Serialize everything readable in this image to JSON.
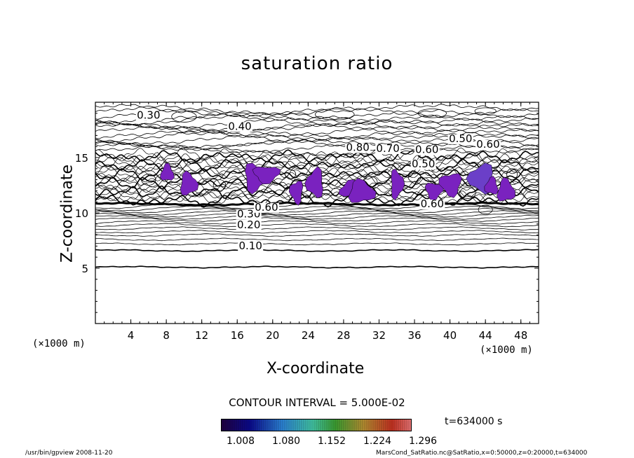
{
  "chart_data": {
    "type": "contour",
    "title": "saturation ratio",
    "xlabel": "X-coordinate",
    "ylabel": "Z-coordinate",
    "x_unit": "(×1000 m)",
    "y_unit": "(×1000 m)",
    "xlim": [
      0,
      50
    ],
    "ylim": [
      0,
      20
    ],
    "xticks": [
      4,
      8,
      12,
      16,
      20,
      24,
      28,
      32,
      36,
      40,
      44,
      48
    ],
    "yticks": [
      5,
      10,
      15
    ],
    "contour_interval_label": "CONTOUR INTERVAL = 5.000E-02",
    "time_label": "t=634000 s",
    "colorbar_ticks": [
      "1.008",
      "1.080",
      "1.152",
      "1.224",
      "1.296"
    ],
    "contour_labels": [
      {
        "text": "0.30",
        "x": 6.0,
        "z": 18.5
      },
      {
        "text": "0.40",
        "x": 16.3,
        "z": 17.5
      },
      {
        "text": "0.50",
        "x": 41.2,
        "z": 16.4
      },
      {
        "text": "0.60",
        "x": 44.3,
        "z": 15.9
      },
      {
        "text": "0.80",
        "x": 29.6,
        "z": 15.6
      },
      {
        "text": "0.70",
        "x": 33.0,
        "z": 15.5
      },
      {
        "text": "0.60",
        "x": 37.4,
        "z": 15.4
      },
      {
        "text": "0.50",
        "x": 37.0,
        "z": 14.1
      },
      {
        "text": "0.30",
        "x": 17.3,
        "z": 9.6
      },
      {
        "text": "0.20",
        "x": 17.3,
        "z": 8.6
      },
      {
        "text": "0.10",
        "x": 17.5,
        "z": 6.7
      },
      {
        "text": "0.60",
        "x": 38.0,
        "z": 10.5
      },
      {
        "text": "0.60",
        "x": 19.3,
        "z": 10.2
      }
    ],
    "supersaturated_regions": [
      {
        "x": 8.1,
        "z": 13.6
      },
      {
        "x": 10.5,
        "z": 12.6
      },
      {
        "x": 18.0,
        "z": 13.2
      },
      {
        "x": 19.3,
        "z": 13.5
      },
      {
        "x": 22.7,
        "z": 11.9
      },
      {
        "x": 24.8,
        "z": 12.7
      },
      {
        "x": 28.8,
        "z": 12.1
      },
      {
        "x": 30.0,
        "z": 11.9
      },
      {
        "x": 34.0,
        "z": 12.6
      },
      {
        "x": 38.2,
        "z": 12.0
      },
      {
        "x": 40.1,
        "z": 12.6
      },
      {
        "x": 43.6,
        "z": 13.1
      },
      {
        "x": 44.7,
        "z": 12.4
      },
      {
        "x": 46.3,
        "z": 12.0
      }
    ]
  },
  "footer": {
    "left": "/usr/bin/gpview   2008-11-20",
    "right": "MarsCond_SatRatio.nc@SatRatio,x=0:50000,z=0:20000,t=634000"
  }
}
